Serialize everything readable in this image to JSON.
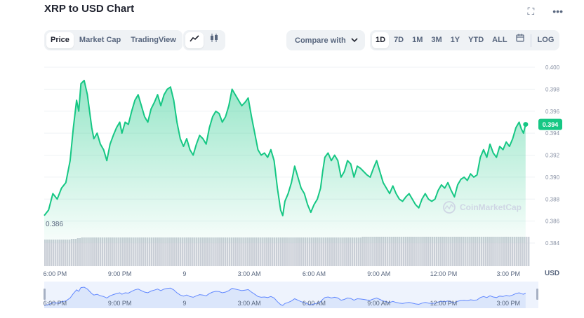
{
  "title": "XRP to USD Chart",
  "icons": {
    "fullscreen": "fullscreen-icon",
    "more": "more-icon",
    "line": "line-chart-icon",
    "candle": "candlestick-icon",
    "calendar": "calendar-icon",
    "chevron": "chevron-down-icon"
  },
  "tabs": [
    "Price",
    "Market Cap",
    "TradingView"
  ],
  "active_tab": "Price",
  "compare_label": "Compare with",
  "ranges": [
    "1D",
    "7D",
    "1M",
    "3M",
    "1Y",
    "YTD",
    "ALL"
  ],
  "active_range": "1D",
  "log_label": "LOG",
  "currency_label": "USD",
  "watermark": "CoinMarketCap",
  "colors": {
    "line": "#16c784",
    "fill_top": "#16c784",
    "volume": "#c9ced6",
    "nav_fill": "#dbe6fb",
    "nav_line": "#6188ff",
    "text": "#58667e"
  },
  "chart_data": {
    "type": "area",
    "title": "",
    "xlabel": "",
    "ylabel": "USD",
    "ylim": [
      0.3835,
      0.4005
    ],
    "yticks": [
      0.4,
      0.398,
      0.396,
      0.394,
      0.392,
      0.39,
      0.388,
      0.386,
      0.384
    ],
    "ytick_labels": [
      "0.400",
      "0.398",
      "0.396",
      "0.394",
      "0.392",
      "0.390",
      "0.388",
      "0.386",
      "0.384"
    ],
    "xticks": [
      {
        "t": 0.5,
        "label": "6:00 PM"
      },
      {
        "t": 3.5,
        "label": "9:00 PM"
      },
      {
        "t": 6.5,
        "label": "9"
      },
      {
        "t": 9.5,
        "label": "3:00 AM"
      },
      {
        "t": 12.5,
        "label": "6:00 AM"
      },
      {
        "t": 15.5,
        "label": "9:00 AM"
      },
      {
        "t": 18.5,
        "label": "12:00 PM"
      },
      {
        "t": 21.5,
        "label": "3:00 PM"
      }
    ],
    "min_label": "0.386",
    "current_value": "0.394",
    "series": [
      {
        "points": [
          [
            0.0,
            0.3865
          ],
          [
            0.2,
            0.387
          ],
          [
            0.4,
            0.3885
          ],
          [
            0.6,
            0.388
          ],
          [
            0.8,
            0.389
          ],
          [
            1.0,
            0.3895
          ],
          [
            1.2,
            0.3915
          ],
          [
            1.35,
            0.3945
          ],
          [
            1.5,
            0.397
          ],
          [
            1.6,
            0.396
          ],
          [
            1.7,
            0.3985
          ],
          [
            1.85,
            0.3988
          ],
          [
            2.0,
            0.3975
          ],
          [
            2.1,
            0.396
          ],
          [
            2.2,
            0.3945
          ],
          [
            2.3,
            0.3935
          ],
          [
            2.45,
            0.394
          ],
          [
            2.6,
            0.393
          ],
          [
            2.75,
            0.3925
          ],
          [
            2.9,
            0.3915
          ],
          [
            3.05,
            0.393
          ],
          [
            3.2,
            0.3938
          ],
          [
            3.35,
            0.3945
          ],
          [
            3.5,
            0.395
          ],
          [
            3.6,
            0.394
          ],
          [
            3.75,
            0.395
          ],
          [
            3.9,
            0.3948
          ],
          [
            4.05,
            0.396
          ],
          [
            4.2,
            0.397
          ],
          [
            4.35,
            0.3975
          ],
          [
            4.5,
            0.3965
          ],
          [
            4.65,
            0.3955
          ],
          [
            4.8,
            0.395
          ],
          [
            4.95,
            0.3962
          ],
          [
            5.1,
            0.3968
          ],
          [
            5.25,
            0.3975
          ],
          [
            5.4,
            0.3965
          ],
          [
            5.55,
            0.3975
          ],
          [
            5.7,
            0.398
          ],
          [
            5.85,
            0.3982
          ],
          [
            6.0,
            0.397
          ],
          [
            6.15,
            0.395
          ],
          [
            6.3,
            0.3935
          ],
          [
            6.45,
            0.3928
          ],
          [
            6.6,
            0.3935
          ],
          [
            6.75,
            0.3925
          ],
          [
            6.9,
            0.392
          ],
          [
            7.05,
            0.393
          ],
          [
            7.2,
            0.3938
          ],
          [
            7.35,
            0.3935
          ],
          [
            7.5,
            0.393
          ],
          [
            7.65,
            0.3945
          ],
          [
            7.8,
            0.3955
          ],
          [
            7.95,
            0.396
          ],
          [
            8.1,
            0.3958
          ],
          [
            8.25,
            0.395
          ],
          [
            8.4,
            0.3955
          ],
          [
            8.55,
            0.3965
          ],
          [
            8.7,
            0.398
          ],
          [
            8.85,
            0.3975
          ],
          [
            9.0,
            0.397
          ],
          [
            9.15,
            0.3965
          ],
          [
            9.3,
            0.3968
          ],
          [
            9.45,
            0.3972
          ],
          [
            9.6,
            0.3955
          ],
          [
            9.75,
            0.394
          ],
          [
            9.9,
            0.3925
          ],
          [
            10.05,
            0.392
          ],
          [
            10.2,
            0.3922
          ],
          [
            10.35,
            0.3918
          ],
          [
            10.5,
            0.3925
          ],
          [
            10.65,
            0.3915
          ],
          [
            10.8,
            0.389
          ],
          [
            10.95,
            0.387
          ],
          [
            11.05,
            0.3865
          ],
          [
            11.15,
            0.3878
          ],
          [
            11.3,
            0.3885
          ],
          [
            11.45,
            0.3895
          ],
          [
            11.6,
            0.391
          ],
          [
            11.75,
            0.39
          ],
          [
            11.9,
            0.389
          ],
          [
            12.05,
            0.3885
          ],
          [
            12.2,
            0.3875
          ],
          [
            12.35,
            0.3868
          ],
          [
            12.5,
            0.3875
          ],
          [
            12.65,
            0.388
          ],
          [
            12.8,
            0.389
          ],
          [
            12.9,
            0.3905
          ],
          [
            13.0,
            0.3918
          ],
          [
            13.15,
            0.3922
          ],
          [
            13.3,
            0.3915
          ],
          [
            13.45,
            0.392
          ],
          [
            13.6,
            0.3915
          ],
          [
            13.75,
            0.39
          ],
          [
            13.9,
            0.3905
          ],
          [
            14.05,
            0.3915
          ],
          [
            14.2,
            0.3912
          ],
          [
            14.35,
            0.39
          ],
          [
            14.5,
            0.391
          ],
          [
            14.65,
            0.3908
          ],
          [
            14.8,
            0.3905
          ],
          [
            14.95,
            0.3902
          ],
          [
            15.1,
            0.39
          ],
          [
            15.25,
            0.3908
          ],
          [
            15.4,
            0.3915
          ],
          [
            15.55,
            0.3905
          ],
          [
            15.7,
            0.3895
          ],
          [
            15.85,
            0.389
          ],
          [
            16.0,
            0.3885
          ],
          [
            16.15,
            0.3892
          ],
          [
            16.3,
            0.3885
          ],
          [
            16.45,
            0.388
          ],
          [
            16.6,
            0.3878
          ],
          [
            16.75,
            0.3882
          ],
          [
            16.9,
            0.3885
          ],
          [
            17.05,
            0.388
          ],
          [
            17.2,
            0.3875
          ],
          [
            17.35,
            0.3872
          ],
          [
            17.5,
            0.388
          ],
          [
            17.65,
            0.3885
          ],
          [
            17.8,
            0.388
          ],
          [
            17.95,
            0.3878
          ],
          [
            18.1,
            0.388
          ],
          [
            18.25,
            0.3888
          ],
          [
            18.4,
            0.3893
          ],
          [
            18.55,
            0.389
          ],
          [
            18.7,
            0.3895
          ],
          [
            18.85,
            0.3888
          ],
          [
            19.0,
            0.3882
          ],
          [
            19.15,
            0.3893
          ],
          [
            19.3,
            0.3898
          ],
          [
            19.45,
            0.39
          ],
          [
            19.6,
            0.3897
          ],
          [
            19.75,
            0.3903
          ],
          [
            19.9,
            0.39
          ],
          [
            20.05,
            0.3902
          ],
          [
            20.2,
            0.3918
          ],
          [
            20.35,
            0.3925
          ],
          [
            20.5,
            0.3918
          ],
          [
            20.65,
            0.393
          ],
          [
            20.8,
            0.3922
          ],
          [
            20.95,
            0.3918
          ],
          [
            21.1,
            0.3928
          ],
          [
            21.25,
            0.3925
          ],
          [
            21.4,
            0.3932
          ],
          [
            21.55,
            0.3928
          ],
          [
            21.7,
            0.3935
          ],
          [
            21.85,
            0.3945
          ],
          [
            22.0,
            0.395
          ],
          [
            22.1,
            0.3944
          ],
          [
            22.2,
            0.394
          ],
          [
            22.3,
            0.3948
          ]
        ]
      }
    ],
    "volume": [
      38,
      38,
      38,
      38,
      38,
      38,
      38,
      38,
      38,
      38,
      38,
      38,
      38,
      39,
      39,
      39,
      40,
      40,
      41,
      41,
      41,
      41,
      41,
      41,
      41,
      41,
      41,
      41,
      41,
      41,
      41,
      41,
      41,
      41,
      41,
      41,
      41,
      41,
      41,
      41,
      41,
      41,
      41,
      41,
      41,
      41,
      41,
      41,
      41,
      41,
      41,
      41,
      41,
      41,
      41,
      41,
      41,
      41,
      41,
      41,
      41,
      41,
      41,
      41,
      41,
      41,
      41,
      41,
      41,
      41,
      41,
      41,
      41,
      41,
      41,
      41,
      41,
      41,
      41,
      41,
      41,
      41,
      41,
      41,
      41,
      41,
      41,
      41,
      41,
      41,
      41,
      41,
      41,
      41,
      41,
      41,
      41,
      41,
      41,
      41,
      41,
      41,
      41,
      41,
      41,
      41,
      41,
      41,
      41,
      41,
      41,
      41,
      41,
      41,
      41,
      41,
      41,
      41,
      41,
      41,
      41,
      41,
      41,
      41,
      41,
      41,
      41,
      41,
      41,
      41,
      41,
      41,
      41,
      41,
      41,
      41,
      41,
      41,
      41,
      41,
      41,
      41,
      41,
      41,
      41,
      41,
      41,
      41,
      41,
      41,
      41,
      41,
      41,
      41,
      41,
      42,
      42,
      42,
      42,
      42,
      42,
      42,
      42,
      42,
      42,
      42,
      42,
      42,
      42,
      42,
      42,
      42,
      42,
      42,
      42,
      42,
      42,
      42,
      42,
      42,
      42,
      42,
      42,
      42,
      42,
      42,
      42,
      42,
      42,
      42,
      42,
      42,
      42,
      42,
      42,
      42,
      42,
      42,
      42,
      42,
      42,
      42,
      42,
      42,
      42,
      42,
      42,
      42,
      42,
      42,
      42,
      42,
      42,
      42,
      42,
      42,
      42,
      42,
      42,
      42,
      42,
      42,
      42,
      42,
      42,
      42,
      42,
      42,
      42,
      42,
      42,
      42,
      42,
      42,
      42,
      42,
      42
    ]
  }
}
